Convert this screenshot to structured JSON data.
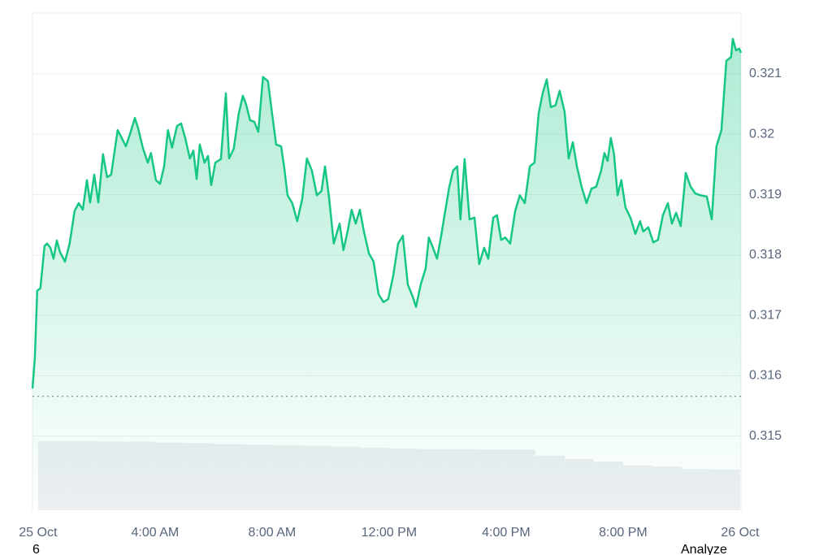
{
  "chart_data": {
    "type": "line",
    "x": [
      -0.19,
      -0.11,
      -0.03,
      0.08,
      0.22,
      0.31,
      0.42,
      0.53,
      0.64,
      0.75,
      0.92,
      1.08,
      1.25,
      1.39,
      1.53,
      1.67,
      1.78,
      1.92,
      2.06,
      2.22,
      2.36,
      2.5,
      2.72,
      2.86,
      3.0,
      3.14,
      3.31,
      3.42,
      3.58,
      3.75,
      3.86,
      4.03,
      4.17,
      4.31,
      4.44,
      4.58,
      4.75,
      4.89,
      5.03,
      5.19,
      5.31,
      5.42,
      5.53,
      5.69,
      5.81,
      5.92,
      6.06,
      6.25,
      6.42,
      6.53,
      6.69,
      6.86,
      7.0,
      7.11,
      7.25,
      7.39,
      7.53,
      7.69,
      7.86,
      8.0,
      8.14,
      8.31,
      8.42,
      8.53,
      8.69,
      8.86,
      9.03,
      9.19,
      9.36,
      9.53,
      9.69,
      9.81,
      9.94,
      10.11,
      10.31,
      10.44,
      10.58,
      10.72,
      10.86,
      11.0,
      11.14,
      11.31,
      11.47,
      11.64,
      11.81,
      11.97,
      12.14,
      12.31,
      12.47,
      12.64,
      12.81,
      12.92,
      13.08,
      13.25,
      13.36,
      13.5,
      13.64,
      13.78,
      13.92,
      14.06,
      14.19,
      14.33,
      14.44,
      14.58,
      14.75,
      14.92,
      15.08,
      15.25,
      15.39,
      15.56,
      15.69,
      15.83,
      15.97,
      16.14,
      16.31,
      16.47,
      16.64,
      16.81,
      16.97,
      17.11,
      17.25,
      17.39,
      17.53,
      17.69,
      17.83,
      18.0,
      18.14,
      18.28,
      18.42,
      18.58,
      18.75,
      18.92,
      19.08,
      19.25,
      19.36,
      19.47,
      19.58,
      19.69,
      19.81,
      19.94,
      20.08,
      20.25,
      20.42,
      20.58,
      20.69,
      20.86,
      21.03,
      21.19,
      21.36,
      21.53,
      21.67,
      21.81,
      21.97,
      22.14,
      22.31,
      22.47,
      22.64,
      22.86,
      23.03,
      23.19,
      23.36,
      23.53,
      23.69,
      23.75,
      23.86,
      23.97,
      24.03
    ],
    "series": [
      {
        "color": "#16c784",
        "values": [
          0.31579,
          0.3163,
          0.31741,
          0.31745,
          0.31815,
          0.31819,
          0.31812,
          0.31794,
          0.31824,
          0.31805,
          0.31789,
          0.31819,
          0.31873,
          0.31886,
          0.31875,
          0.31924,
          0.31887,
          0.31933,
          0.31887,
          0.31967,
          0.31929,
          0.31933,
          0.32007,
          0.31994,
          0.3198,
          0.32,
          0.32027,
          0.3201,
          0.31978,
          0.31953,
          0.31969,
          0.31924,
          0.31918,
          0.31947,
          0.32007,
          0.31978,
          0.32014,
          0.32018,
          0.31994,
          0.3196,
          0.31973,
          0.31926,
          0.31983,
          0.31953,
          0.31964,
          0.31916,
          0.31953,
          0.31959,
          0.32068,
          0.3196,
          0.31976,
          0.32034,
          0.32064,
          0.3205,
          0.32023,
          0.32021,
          0.32004,
          0.32095,
          0.32088,
          0.32034,
          0.31983,
          0.3198,
          0.31943,
          0.31899,
          0.31886,
          0.31856,
          0.31893,
          0.3196,
          0.3194,
          0.31899,
          0.31906,
          0.31947,
          0.31899,
          0.31819,
          0.31852,
          0.31808,
          0.31839,
          0.31875,
          0.31852,
          0.31875,
          0.31839,
          0.31803,
          0.31789,
          0.31735,
          0.31722,
          0.31727,
          0.31765,
          0.31819,
          0.31832,
          0.31751,
          0.31731,
          0.31714,
          0.31751,
          0.31778,
          0.31829,
          0.31812,
          0.31794,
          0.31832,
          0.31873,
          0.31913,
          0.3194,
          0.31947,
          0.31859,
          0.31959,
          0.31859,
          0.31862,
          0.31785,
          0.31812,
          0.31794,
          0.31862,
          0.31866,
          0.31825,
          0.31829,
          0.31819,
          0.31873,
          0.31899,
          0.31886,
          0.31947,
          0.31953,
          0.32034,
          0.32068,
          0.32091,
          0.32045,
          0.32048,
          0.32072,
          0.32037,
          0.3196,
          0.31987,
          0.31947,
          0.31913,
          0.31886,
          0.3191,
          0.31913,
          0.3194,
          0.31969,
          0.31956,
          0.31994,
          0.31967,
          0.31899,
          0.31924,
          0.31879,
          0.31862,
          0.31835,
          0.31856,
          0.31839,
          0.31846,
          0.31821,
          0.31825,
          0.31866,
          0.31886,
          0.31852,
          0.3187,
          0.31848,
          0.31936,
          0.31913,
          0.31902,
          0.31899,
          0.31897,
          0.31859,
          0.3198,
          0.32007,
          0.32122,
          0.32128,
          0.32158,
          0.32139,
          0.32142,
          0.32135
        ]
      }
    ],
    "volume": {
      "axis": "y2",
      "color": "#eceef2",
      "x": [
        0,
        1,
        2,
        3,
        4,
        5,
        6,
        7,
        8,
        9,
        10,
        11,
        12,
        13,
        14,
        15,
        16,
        17,
        18,
        19,
        20,
        21,
        22,
        23
      ],
      "values": [
        13.9,
        13.9,
        13.8,
        13.8,
        13.6,
        13.5,
        13.3,
        13.2,
        13.1,
        13.0,
        12.8,
        12.6,
        12.4,
        12.3,
        12.3,
        12.2,
        12.2,
        11.0,
        10.3,
        9.8,
        9.0,
        8.8,
        8.3,
        8.2
      ]
    },
    "y2lim": [
      0,
      100
    ],
    "baseline": 0.31566,
    "xlim": [
      -0.19,
      24.03
    ],
    "xticks": [
      {
        "value": 0,
        "label": "25 Oct"
      },
      {
        "value": 4,
        "label": "4:00 AM"
      },
      {
        "value": 8,
        "label": "8:00 AM"
      },
      {
        "value": 12,
        "label": "12:00 PM"
      },
      {
        "value": 16,
        "label": "4:00 PM"
      },
      {
        "value": 20,
        "label": "8:00 PM"
      },
      {
        "value": 24,
        "label": "26 Oct"
      }
    ],
    "ylim": [
      0.31377,
      0.32201
    ],
    "yticks": [
      0.315,
      0.316,
      0.317,
      0.318,
      0.319,
      0.32,
      0.321
    ],
    "grid": true
  },
  "footer": {
    "left": "6",
    "right": "Analyze"
  }
}
